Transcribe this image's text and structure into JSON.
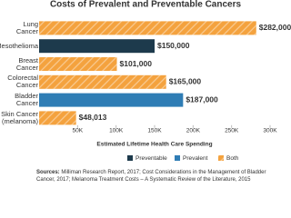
{
  "chart_data": {
    "type": "hbar",
    "title": "Costs of Prevalent and Preventable Cancers",
    "categories": [
      "Lung Cancer",
      "Mesothelioma",
      "Breast Cancer",
      "Colorectal Cancer",
      "Bladder Cancer",
      "Skin Cancer\n(melanoma)"
    ],
    "series": [
      {
        "name": "Preventable",
        "color": "#1d3a4c",
        "values": [
          null,
          150000,
          null,
          null,
          null,
          null
        ],
        "value_labels": [
          null,
          "$150,000",
          null,
          null,
          null,
          null
        ]
      },
      {
        "name": "Prevalent",
        "color": "#2f7db5",
        "values": [
          null,
          null,
          null,
          null,
          187000,
          null
        ],
        "value_labels": [
          null,
          null,
          null,
          null,
          "$187,000",
          null
        ]
      },
      {
        "name": "Both",
        "color": "#f4a23e",
        "hatch": true,
        "values": [
          282000,
          null,
          101000,
          165000,
          null,
          48013
        ],
        "value_labels": [
          "$282,000",
          null,
          "$101,000",
          "$165,000",
          null,
          "$48,013"
        ]
      }
    ],
    "xlim": [
      0,
      300000
    ],
    "xticks": [
      {
        "value": 50000,
        "label": "50K"
      },
      {
        "value": 100000,
        "label": "100K"
      },
      {
        "value": 150000,
        "label": "150K"
      },
      {
        "value": 200000,
        "label": "200K"
      },
      {
        "value": 250000,
        "label": "250K"
      },
      {
        "value": 300000,
        "label": "300K"
      }
    ],
    "xlabel": "Estimated Lifetime Health Care Spending",
    "sources_label": "Sources:",
    "sources": "Milliman Research Report, 2017; Cost Considerations in the Management of Bladder Cancer, 2017; Melanoma Treatment Costs – A Systematic Review of the Literature, 2015"
  }
}
